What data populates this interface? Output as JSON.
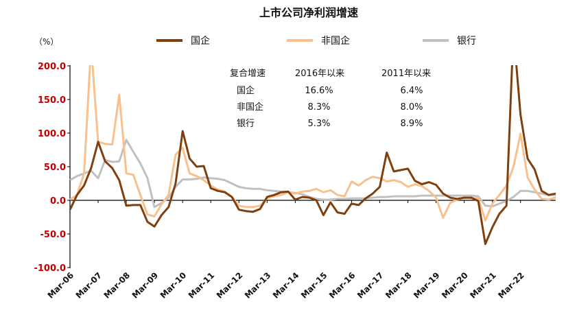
{
  "chart_data": {
    "type": "line",
    "title": "上市公司净利润增速",
    "unit_label": "（%）",
    "ylim": [
      -100,
      200
    ],
    "yticks": [
      "200.0",
      "150.0",
      "100.0",
      "50.0",
      "0.0",
      "-50.0",
      "-100.0"
    ],
    "ytick_values": [
      200,
      150,
      100,
      50,
      0,
      -50,
      -100
    ],
    "xticks": [
      "Mar-06",
      "Mar-07",
      "Mar-08",
      "Mar-09",
      "Mar-10",
      "Mar-11",
      "Mar-12",
      "Mar-13",
      "Mar-14",
      "Mar-15",
      "Mar-16",
      "Mar-17",
      "Mar-18",
      "Mar-19",
      "Mar-20",
      "Mar-21",
      "Mar-22"
    ],
    "x_start": "2006-03",
    "x_end": "2022-09",
    "legend_position": "top",
    "series": [
      {
        "name": "国企",
        "color": "#7f3f0f",
        "values": [
          -14,
          8,
          22,
          48,
          87,
          58,
          48,
          30,
          -8,
          -7,
          -7,
          -32,
          -39,
          -22,
          -10,
          25,
          103,
          62,
          50,
          51,
          18,
          14,
          12,
          5,
          -14,
          -16,
          -17,
          -13,
          5,
          8,
          12,
          13,
          1,
          5,
          4,
          0,
          -22,
          -3,
          -18,
          -20,
          -5,
          -7,
          3,
          10,
          20,
          71,
          43,
          45,
          47,
          29,
          24,
          27,
          23,
          10,
          4,
          2,
          4,
          4,
          -1,
          -65,
          -40,
          -20,
          -8,
          252,
          127,
          62,
          46,
          14,
          8,
          10
        ]
      },
      {
        "name": "非国企",
        "color": "#f8c08c",
        "values": [
          1,
          8,
          40,
          230,
          87,
          84,
          83,
          157,
          40,
          38,
          8,
          -21,
          -24,
          -6,
          8,
          68,
          78,
          40,
          36,
          30,
          22,
          16,
          13,
          5,
          -8,
          -10,
          -10,
          -8,
          3,
          6,
          8,
          12,
          10,
          13,
          14,
          17,
          12,
          15,
          8,
          6,
          28,
          22,
          30,
          35,
          33,
          28,
          30,
          27,
          20,
          24,
          21,
          14,
          4,
          -26,
          -4,
          1,
          4,
          3,
          3,
          -30,
          -5,
          8,
          22,
          50,
          99,
          34,
          16,
          2,
          1,
          4
        ]
      },
      {
        "name": "银行",
        "color": "#c0c0c0",
        "values": [
          30,
          36,
          40,
          44,
          33,
          60,
          57,
          58,
          90,
          72,
          55,
          33,
          -10,
          -4,
          4,
          20,
          31,
          31,
          32,
          34,
          33,
          32,
          30,
          25,
          20,
          18,
          17,
          17,
          15,
          14,
          13,
          12,
          11,
          9,
          5,
          2,
          1,
          1,
          2,
          2,
          3,
          3,
          3,
          4,
          5,
          5,
          6,
          6,
          6,
          6,
          7,
          7,
          7,
          7,
          7,
          7,
          7,
          7,
          6,
          -8,
          -9,
          -5,
          -1,
          5,
          14,
          14,
          12,
          10,
          8,
          8
        ]
      }
    ],
    "table": {
      "header": [
        "复合增速",
        "2016年以来",
        "2011年以来"
      ],
      "rows": [
        [
          "国企",
          "16.6%",
          "6.4%"
        ],
        [
          "非国企",
          "8.3%",
          "8.0%"
        ],
        [
          "银行",
          "5.3%",
          "8.9%"
        ]
      ]
    },
    "colors": {
      "ytick": "#c00000",
      "axis": "#000000"
    }
  }
}
